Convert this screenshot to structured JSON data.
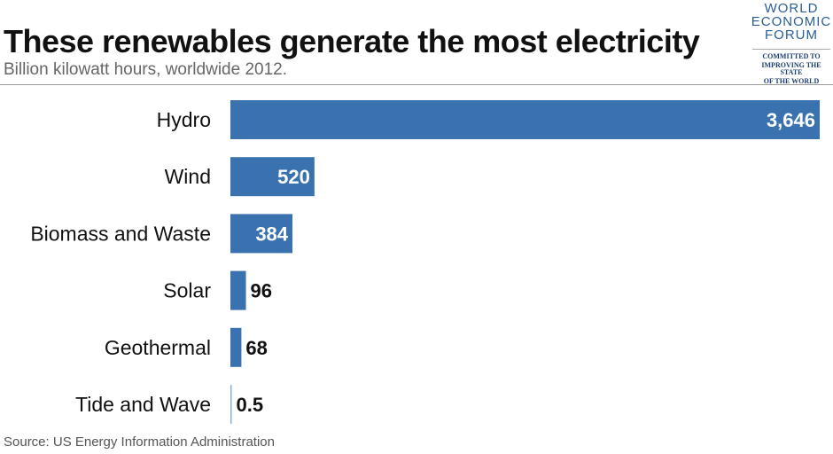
{
  "header": {
    "title": "These renewables generate the most electricity",
    "subtitle": "Billion kilowatt hours, worldwide 2012."
  },
  "logo": {
    "line1": "WORLD",
    "line2": "ECONOMIC",
    "line3": "FORUM",
    "tag1": "COMMITTED TO",
    "tag2": "IMPROVING THE STATE",
    "tag3": "OF THE WORLD"
  },
  "footer": {
    "source": "Source: US Energy Information Administration"
  },
  "colors": {
    "bar": "#3a72b0",
    "tiny_bar": "#8fb0d4"
  },
  "chart_data": {
    "type": "bar",
    "orientation": "horizontal",
    "title": "These renewables generate the most electricity",
    "subtitle": "Billion kilowatt hours, worldwide 2012.",
    "categories": [
      "Hydro",
      "Wind",
      "Biomass and Waste",
      "Solar",
      "Geothermal",
      "Tide and Wave"
    ],
    "values": [
      3646,
      520,
      384,
      96,
      68,
      0.5
    ],
    "labels": [
      "3,646",
      "520",
      "384",
      "96",
      "68",
      "0.5"
    ],
    "xlabel": "",
    "ylabel": "Billion kilowatt hours",
    "xlim": [
      0,
      3646
    ],
    "grid": false
  }
}
